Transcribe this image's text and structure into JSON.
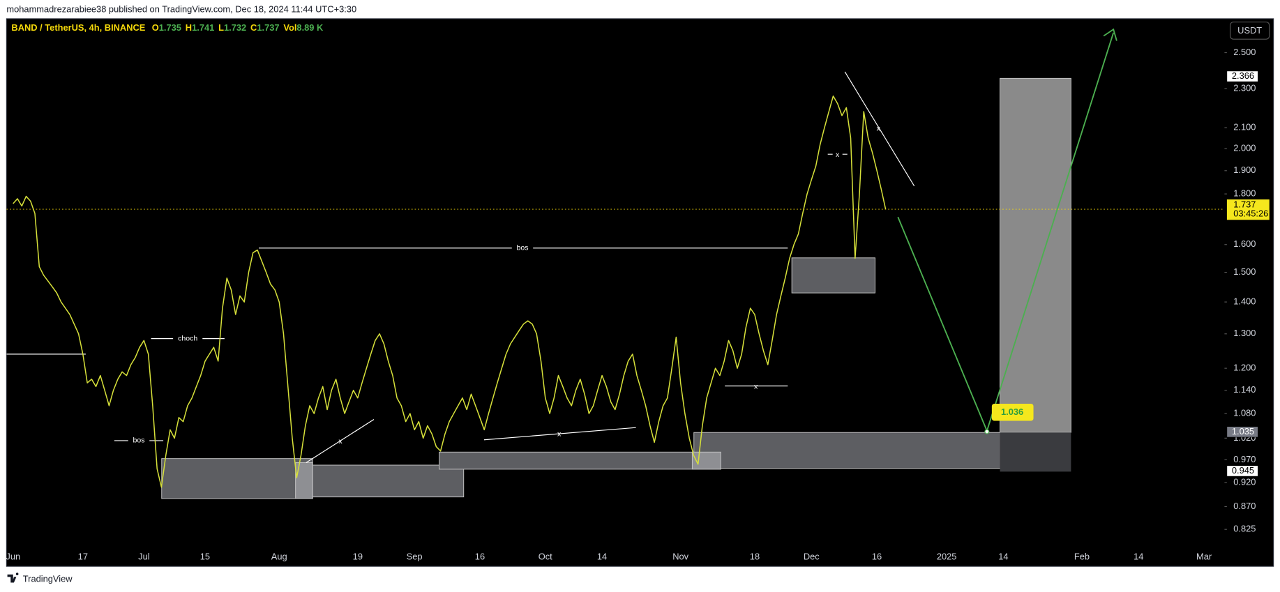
{
  "header": "mohammadrezarabiee38 published on TradingView.com, Dec 18, 2024 11:44 UTC+3:30",
  "footer": "TradingView",
  "chart_data": {
    "type": "line",
    "legend": {
      "symbol": "BAND / TetherUS, 4h, BINANCE",
      "fields": [
        {
          "label": "O",
          "value": 1.735
        },
        {
          "label": "H",
          "value": 1.741
        },
        {
          "label": "L",
          "value": 1.732
        },
        {
          "label": "C",
          "value": 1.737
        },
        {
          "label": "Vol",
          "value": "8.89 K"
        }
      ]
    },
    "currency": "USDT",
    "color": "#d6e03a",
    "log_scale": true,
    "grid": false,
    "ylim": [
      0.76,
      2.7
    ],
    "yticks": [
      {
        "value": 0.825,
        "label": "0.825"
      },
      {
        "value": 0.87,
        "label": "0.870"
      },
      {
        "value": 0.92,
        "label": "0.920"
      },
      {
        "value": 0.97,
        "label": "0.970"
      },
      {
        "value": 1.02,
        "label": "1.020"
      },
      {
        "value": 1.08,
        "label": "1.080"
      },
      {
        "value": 1.14,
        "label": "1.140"
      },
      {
        "value": 1.2,
        "label": "1.200"
      },
      {
        "value": 1.3,
        "label": "1.300"
      },
      {
        "value": 1.4,
        "label": "1.400"
      },
      {
        "value": 1.5,
        "label": "1.500"
      },
      {
        "value": 1.6,
        "label": "1.600"
      },
      {
        "value": 1.8,
        "label": "1.800"
      },
      {
        "value": 1.9,
        "label": "1.900"
      },
      {
        "value": 2.0,
        "label": "2.000"
      },
      {
        "value": 2.1,
        "label": "2.100"
      },
      {
        "value": 2.3,
        "label": "2.300"
      },
      {
        "value": 2.5,
        "label": "2.500"
      }
    ],
    "last_price": 1.737,
    "countdown": "03:45:26",
    "price_labels": [
      2.366,
      1.035,
      0.945
    ],
    "target_label": 1.036,
    "annotations": [
      "choch",
      "bos",
      "bos",
      "x",
      "x",
      "x",
      "x",
      "x"
    ],
    "categories": [
      "Jun",
      null,
      null,
      null,
      null,
      null,
      null,
      null,
      null,
      null,
      null,
      null,
      null,
      null,
      null,
      null,
      "17",
      null,
      null,
      null,
      null,
      null,
      null,
      null,
      null,
      null,
      null,
      null,
      null,
      null,
      "Jul",
      null,
      null,
      null,
      null,
      null,
      null,
      null,
      null,
      null,
      null,
      null,
      null,
      null,
      "15",
      null,
      null,
      null,
      null,
      null,
      null,
      null,
      null,
      null,
      null,
      null,
      null,
      null,
      null,
      null,
      null,
      "Aug",
      null,
      null,
      null,
      null,
      null,
      null,
      null,
      null,
      null,
      null,
      null,
      null,
      null,
      null,
      null,
      null,
      null,
      "19",
      null,
      null,
      null,
      null,
      null,
      null,
      null,
      null,
      null,
      null,
      null,
      null,
      "Sep",
      null,
      null,
      null,
      null,
      null,
      null,
      null,
      null,
      null,
      null,
      null,
      null,
      null,
      null,
      "16",
      null,
      null,
      null,
      null,
      null,
      null,
      null,
      null,
      null,
      null,
      null,
      null,
      null,
      null,
      "Oct",
      null,
      null,
      null,
      null,
      null,
      null,
      null,
      null,
      null,
      null,
      null,
      null,
      "14",
      null,
      null,
      null,
      null,
      null,
      null,
      null,
      null,
      null,
      null,
      null,
      null,
      null,
      null,
      null,
      null,
      null,
      "Nov",
      null,
      null,
      null,
      null,
      null,
      null,
      null,
      null,
      null,
      null,
      null,
      null,
      null,
      null,
      null,
      null,
      "18",
      null,
      null,
      null,
      null,
      null,
      null,
      null,
      null,
      null,
      null,
      null,
      null,
      "Dec",
      null,
      null,
      null,
      null,
      null,
      null,
      null,
      null,
      null,
      null,
      null,
      null,
      null,
      null,
      "16",
      null,
      null,
      null,
      null,
      null,
      null,
      null,
      null,
      null,
      null,
      null,
      null,
      null,
      null,
      null,
      "2025",
      null,
      null,
      null,
      null,
      null,
      null,
      null,
      null,
      null,
      null,
      null,
      null,
      "14",
      null,
      null,
      null,
      null,
      null,
      null,
      null,
      null,
      null,
      null,
      null,
      null,
      null,
      null,
      null,
      null,
      null,
      "Feb",
      null,
      null,
      null,
      null,
      null,
      null,
      null,
      null,
      null,
      null,
      null,
      null,
      "14",
      null,
      null,
      null,
      null,
      null,
      null,
      null,
      null,
      null,
      null,
      null,
      null,
      null,
      null,
      "Mar"
    ],
    "values": [
      1.76,
      1.78,
      1.75,
      1.79,
      1.77,
      1.72,
      1.52,
      1.49,
      1.47,
      1.45,
      1.43,
      1.4,
      1.38,
      1.36,
      1.33,
      1.3,
      1.24,
      1.16,
      1.17,
      1.15,
      1.18,
      1.14,
      1.1,
      1.14,
      1.17,
      1.19,
      1.18,
      1.21,
      1.23,
      1.26,
      1.28,
      1.24,
      1.1,
      0.95,
      0.91,
      0.98,
      1.04,
      1.02,
      1.07,
      1.06,
      1.1,
      1.12,
      1.15,
      1.18,
      1.22,
      1.24,
      1.26,
      1.22,
      1.38,
      1.48,
      1.44,
      1.36,
      1.42,
      1.4,
      1.5,
      1.57,
      1.58,
      1.54,
      1.5,
      1.46,
      1.44,
      1.4,
      1.3,
      1.15,
      1.02,
      0.93,
      0.98,
      1.05,
      1.1,
      1.08,
      1.12,
      1.15,
      1.09,
      1.14,
      1.17,
      1.12,
      1.08,
      1.11,
      1.14,
      1.12,
      1.16,
      1.2,
      1.24,
      1.28,
      1.3,
      1.27,
      1.22,
      1.18,
      1.12,
      1.1,
      1.06,
      1.08,
      1.04,
      1.06,
      1.02,
      1.05,
      1.03,
      1.0,
      0.99,
      1.03,
      1.06,
      1.08,
      1.1,
      1.12,
      1.09,
      1.13,
      1.1,
      1.07,
      1.04,
      1.08,
      1.12,
      1.16,
      1.2,
      1.24,
      1.27,
      1.29,
      1.31,
      1.33,
      1.34,
      1.33,
      1.3,
      1.22,
      1.12,
      1.08,
      1.12,
      1.18,
      1.15,
      1.12,
      1.1,
      1.14,
      1.17,
      1.13,
      1.08,
      1.1,
      1.14,
      1.18,
      1.15,
      1.11,
      1.09,
      1.13,
      1.18,
      1.22,
      1.24,
      1.18,
      1.14,
      1.1,
      1.05,
      1.01,
      1.06,
      1.1,
      1.12,
      1.2,
      1.29,
      1.16,
      1.08,
      1.02,
      0.98,
      0.96,
      1.05,
      1.12,
      1.16,
      1.2,
      1.18,
      1.22,
      1.28,
      1.25,
      1.2,
      1.24,
      1.32,
      1.38,
      1.36,
      1.3,
      1.25,
      1.21,
      1.28,
      1.36,
      1.42,
      1.48,
      1.55,
      1.6,
      1.64,
      1.72,
      1.8,
      1.86,
      1.92,
      2.02,
      2.1,
      2.18,
      2.26,
      2.22,
      2.16,
      2.2,
      2.05,
      1.55,
      1.8,
      2.18,
      2.05,
      1.98,
      1.9,
      1.82,
      1.737,
      null,
      null,
      null,
      null,
      null,
      null,
      null,
      null,
      null,
      null,
      null,
      null,
      null,
      null,
      null,
      null,
      null,
      null,
      null,
      null,
      null,
      null,
      null,
      null,
      null,
      null,
      null,
      null,
      null,
      null,
      null,
      null,
      null,
      null,
      null,
      null,
      null,
      null,
      null,
      null,
      null,
      null,
      null,
      null,
      null,
      null,
      null,
      null,
      null,
      null,
      null,
      null,
      null,
      null,
      null,
      null,
      null,
      null,
      null,
      null,
      null,
      null,
      null,
      null,
      null,
      null,
      null,
      null,
      null,
      null,
      null,
      null,
      null
    ]
  }
}
